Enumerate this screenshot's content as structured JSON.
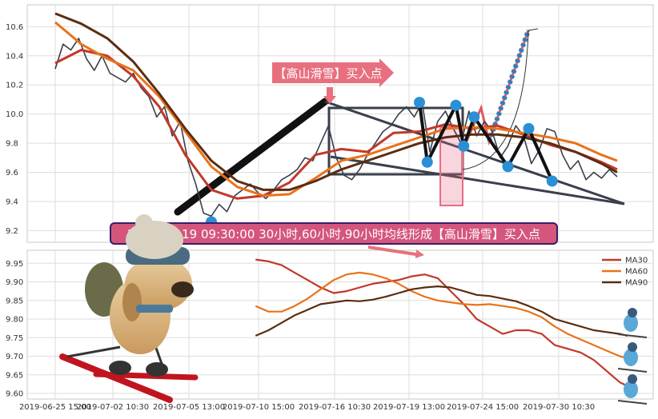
{
  "chart_data": [
    {
      "type": "line",
      "panel": "top",
      "ylim": [
        9.12,
        10.75
      ],
      "y_ticks": [
        9.2,
        9.4,
        9.6,
        9.8,
        10.0,
        10.2,
        10.4,
        10.6
      ],
      "grid": true,
      "series": [
        {
          "role": "price",
          "color": "#3a3f4c",
          "x": [
            0,
            3,
            6,
            9,
            12,
            15,
            18,
            21,
            24,
            27,
            30,
            33,
            36,
            39,
            42,
            45,
            48,
            51,
            54,
            57,
            60,
            63,
            66,
            69,
            72,
            75,
            78,
            81,
            84,
            87,
            90,
            93,
            96,
            99,
            102,
            105,
            108,
            111,
            114,
            117,
            120,
            123,
            126,
            129,
            132,
            135,
            138,
            141,
            144,
            147,
            150,
            153,
            156,
            159,
            162,
            165,
            168,
            171,
            174,
            177,
            180,
            183,
            186,
            189,
            192,
            195,
            198,
            201,
            204,
            207,
            210,
            213,
            216
          ],
          "y": [
            10.31,
            10.48,
            10.44,
            10.52,
            10.38,
            10.3,
            10.4,
            10.28,
            10.25,
            10.22,
            10.28,
            10.18,
            10.12,
            9.98,
            10.05,
            9.85,
            9.95,
            9.68,
            9.52,
            9.32,
            9.3,
            9.38,
            9.33,
            9.44,
            9.48,
            9.52,
            9.46,
            9.42,
            9.48,
            9.55,
            9.58,
            9.62,
            9.7,
            9.68,
            9.8,
            9.92,
            9.7,
            9.58,
            9.55,
            9.62,
            9.72,
            9.8,
            9.88,
            9.92,
            10.0,
            10.05,
            9.98,
            10.08,
            9.74,
            9.95,
            10.02,
            9.9,
            9.8,
            10.02,
            9.85,
            9.95,
            9.88,
            9.7,
            9.78,
            9.92,
            9.85,
            9.66,
            9.75,
            9.9,
            9.88,
            9.72,
            9.62,
            9.68,
            9.55,
            9.6,
            9.56,
            9.62,
            9.57
          ]
        },
        {
          "name": "MA30",
          "color": "#c0392b",
          "x": [
            0,
            10,
            20,
            30,
            40,
            50,
            60,
            70,
            80,
            90,
            100,
            110,
            120,
            130,
            140,
            150,
            160,
            170,
            180,
            190,
            200,
            210,
            216
          ],
          "y": [
            10.35,
            10.44,
            10.4,
            10.26,
            10.05,
            9.72,
            9.48,
            9.42,
            9.44,
            9.53,
            9.72,
            9.76,
            9.74,
            9.87,
            9.88,
            9.93,
            9.9,
            9.92,
            9.86,
            9.79,
            9.74,
            9.67,
            9.62
          ]
        },
        {
          "name": "MA60",
          "color": "#e8731a",
          "x": [
            0,
            10,
            20,
            30,
            40,
            50,
            60,
            70,
            80,
            90,
            100,
            110,
            120,
            130,
            140,
            150,
            160,
            170,
            180,
            190,
            200,
            210,
            216
          ],
          "y": [
            10.63,
            10.48,
            10.38,
            10.3,
            10.12,
            9.88,
            9.64,
            9.5,
            9.44,
            9.45,
            9.56,
            9.68,
            9.72,
            9.78,
            9.84,
            9.9,
            9.91,
            9.9,
            9.87,
            9.84,
            9.8,
            9.72,
            9.68
          ]
        },
        {
          "name": "MA90",
          "color": "#5a2d12",
          "x": [
            0,
            10,
            20,
            30,
            40,
            50,
            60,
            70,
            80,
            90,
            100,
            110,
            120,
            130,
            140,
            150,
            160,
            170,
            180,
            190,
            200,
            210,
            216
          ],
          "y": [
            10.69,
            10.62,
            10.52,
            10.36,
            10.14,
            9.9,
            9.68,
            9.54,
            9.48,
            9.48,
            9.54,
            9.62,
            9.68,
            9.74,
            9.8,
            9.84,
            9.86,
            9.86,
            9.84,
            9.8,
            9.74,
            9.66,
            9.6
          ]
        }
      ],
      "pattern_points": [
        {
          "x": 60,
          "y": 9.26
        },
        {
          "x": 140,
          "y": 10.08
        },
        {
          "x": 143,
          "y": 9.67
        },
        {
          "x": 154,
          "y": 10.06
        },
        {
          "x": 157,
          "y": 9.78
        },
        {
          "x": 161,
          "y": 9.98
        },
        {
          "x": 174,
          "y": 9.64
        },
        {
          "x": 182,
          "y": 9.9
        },
        {
          "x": 191,
          "y": 9.54
        }
      ],
      "annotation": {
        "label": "【高山滑雪】买入点"
      }
    },
    {
      "type": "line",
      "panel": "bottom",
      "title": "2019-07-19 09:30:00 30小时,60小时,90小时均线形成【高山滑雪】买入点",
      "ylim": [
        9.585,
        9.985
      ],
      "y_ticks": [
        9.6,
        9.65,
        9.7,
        9.75,
        9.8,
        9.85,
        9.9,
        9.95
      ],
      "x_ticks": [
        "2019-06-25 15:00",
        "2019-07-02 10:30",
        "2019-07-05 13:00",
        "2019-07-10 15:00",
        "2019-07-16 10:30",
        "2019-07-19 13:00",
        "2019-07-24 15:00",
        "2019-07-30 10:30"
      ],
      "legend": {
        "placement": "top-right",
        "entries": [
          "MA30",
          "MA60",
          "MA90"
        ]
      },
      "grid": true,
      "series": [
        {
          "name": "MA30",
          "color": "#c0392b",
          "x": [
            77,
            82,
            87,
            92,
            97,
            102,
            107,
            112,
            117,
            122,
            127,
            132,
            137,
            142,
            147,
            152,
            157,
            162,
            167,
            172,
            177,
            182,
            187,
            192,
            197,
            202,
            207,
            212,
            217,
            220
          ],
          "y": [
            9.96,
            9.955,
            9.945,
            9.925,
            9.905,
            9.885,
            9.87,
            9.875,
            9.885,
            9.895,
            9.9,
            9.905,
            9.915,
            9.92,
            9.91,
            9.875,
            9.84,
            9.8,
            9.78,
            9.76,
            9.77,
            9.77,
            9.76,
            9.73,
            9.72,
            9.71,
            9.69,
            9.66,
            9.63,
            9.62
          ]
        },
        {
          "name": "MA60",
          "color": "#e8731a",
          "x": [
            77,
            82,
            87,
            92,
            97,
            102,
            107,
            112,
            117,
            122,
            127,
            132,
            137,
            142,
            147,
            152,
            157,
            162,
            167,
            172,
            177,
            182,
            187,
            192,
            197,
            202,
            207,
            212,
            217,
            220
          ],
          "y": [
            9.835,
            9.82,
            9.82,
            9.835,
            9.855,
            9.88,
            9.905,
            9.92,
            9.925,
            9.92,
            9.91,
            9.895,
            9.875,
            9.86,
            9.85,
            9.845,
            9.84,
            9.838,
            9.84,
            9.835,
            9.83,
            9.82,
            9.805,
            9.78,
            9.76,
            9.745,
            9.73,
            9.715,
            9.7,
            9.695
          ]
        },
        {
          "name": "MA90",
          "color": "#5a2d12",
          "x": [
            77,
            82,
            87,
            92,
            97,
            102,
            107,
            112,
            117,
            122,
            127,
            132,
            137,
            142,
            147,
            152,
            157,
            162,
            167,
            172,
            177,
            182,
            187,
            192,
            197,
            202,
            207,
            212,
            217,
            220
          ],
          "y": [
            9.755,
            9.77,
            9.79,
            9.81,
            9.825,
            9.84,
            9.845,
            9.85,
            9.848,
            9.852,
            9.86,
            9.87,
            9.88,
            9.885,
            9.888,
            9.885,
            9.875,
            9.865,
            9.862,
            9.855,
            9.848,
            9.835,
            9.82,
            9.8,
            9.79,
            9.78,
            9.77,
            9.765,
            9.76,
            9.755
          ]
        }
      ]
    }
  ]
}
